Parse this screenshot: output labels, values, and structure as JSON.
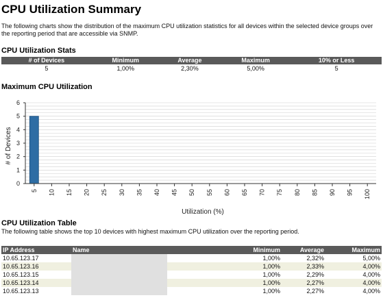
{
  "page_title": "CPU Utilization Summary",
  "intro_text": "The following charts show the distribution of the maximum CPU utilization statistics for all devices within the selected device groups over the reporting period that are accessible via SNMP.",
  "stats": {
    "title": "CPU Utilization Stats",
    "headers": [
      "# of Devices",
      "Minimum",
      "Average",
      "Maximum",
      "10% or Less"
    ],
    "row": [
      "5",
      "1,00%",
      "2,30%",
      "5,00%",
      "5"
    ]
  },
  "chart": {
    "section_title": "Maximum CPU Utilization",
    "xlabel": "Utilization (%)",
    "ylabel": "# of Devices"
  },
  "chart_data": {
    "type": "bar",
    "categories": [
      "5",
      "10",
      "15",
      "20",
      "25",
      "30",
      "35",
      "40",
      "45",
      "50",
      "55",
      "60",
      "65",
      "70",
      "75",
      "80",
      "85",
      "90",
      "95",
      "100"
    ],
    "values": [
      5,
      0,
      0,
      0,
      0,
      0,
      0,
      0,
      0,
      0,
      0,
      0,
      0,
      0,
      0,
      0,
      0,
      0,
      0,
      0
    ],
    "xlabel": "Utilization (%)",
    "ylabel": "# of Devices",
    "ylim": [
      0,
      6
    ],
    "yticks": [
      "0",
      "1",
      "2",
      "3",
      "4",
      "5",
      "6"
    ],
    "grid": true,
    "bar_color": "#2e6da4"
  },
  "table": {
    "title": "CPU Utilization Table",
    "intro": "The following table shows the top 10 devices with highest maximum CPU utilization over the reporting period.",
    "headers": {
      "ip": "IP Address",
      "name": "Name",
      "min": "Minimum",
      "avg": "Average",
      "max": "Maximum"
    },
    "rows": [
      {
        "ip": "10.65.123.17",
        "min": "1,00%",
        "avg": "2,32%",
        "max": "5,00%"
      },
      {
        "ip": "10.65.123.16",
        "min": "1,00%",
        "avg": "2,33%",
        "max": "4,00%"
      },
      {
        "ip": "10.65.123.15",
        "min": "1,00%",
        "avg": "2,29%",
        "max": "4,00%"
      },
      {
        "ip": "10.65.123.14",
        "min": "1,00%",
        "avg": "2,27%",
        "max": "4,00%"
      },
      {
        "ip": "10.65.123.13",
        "min": "1,00%",
        "avg": "2,27%",
        "max": "4,00%"
      }
    ]
  }
}
